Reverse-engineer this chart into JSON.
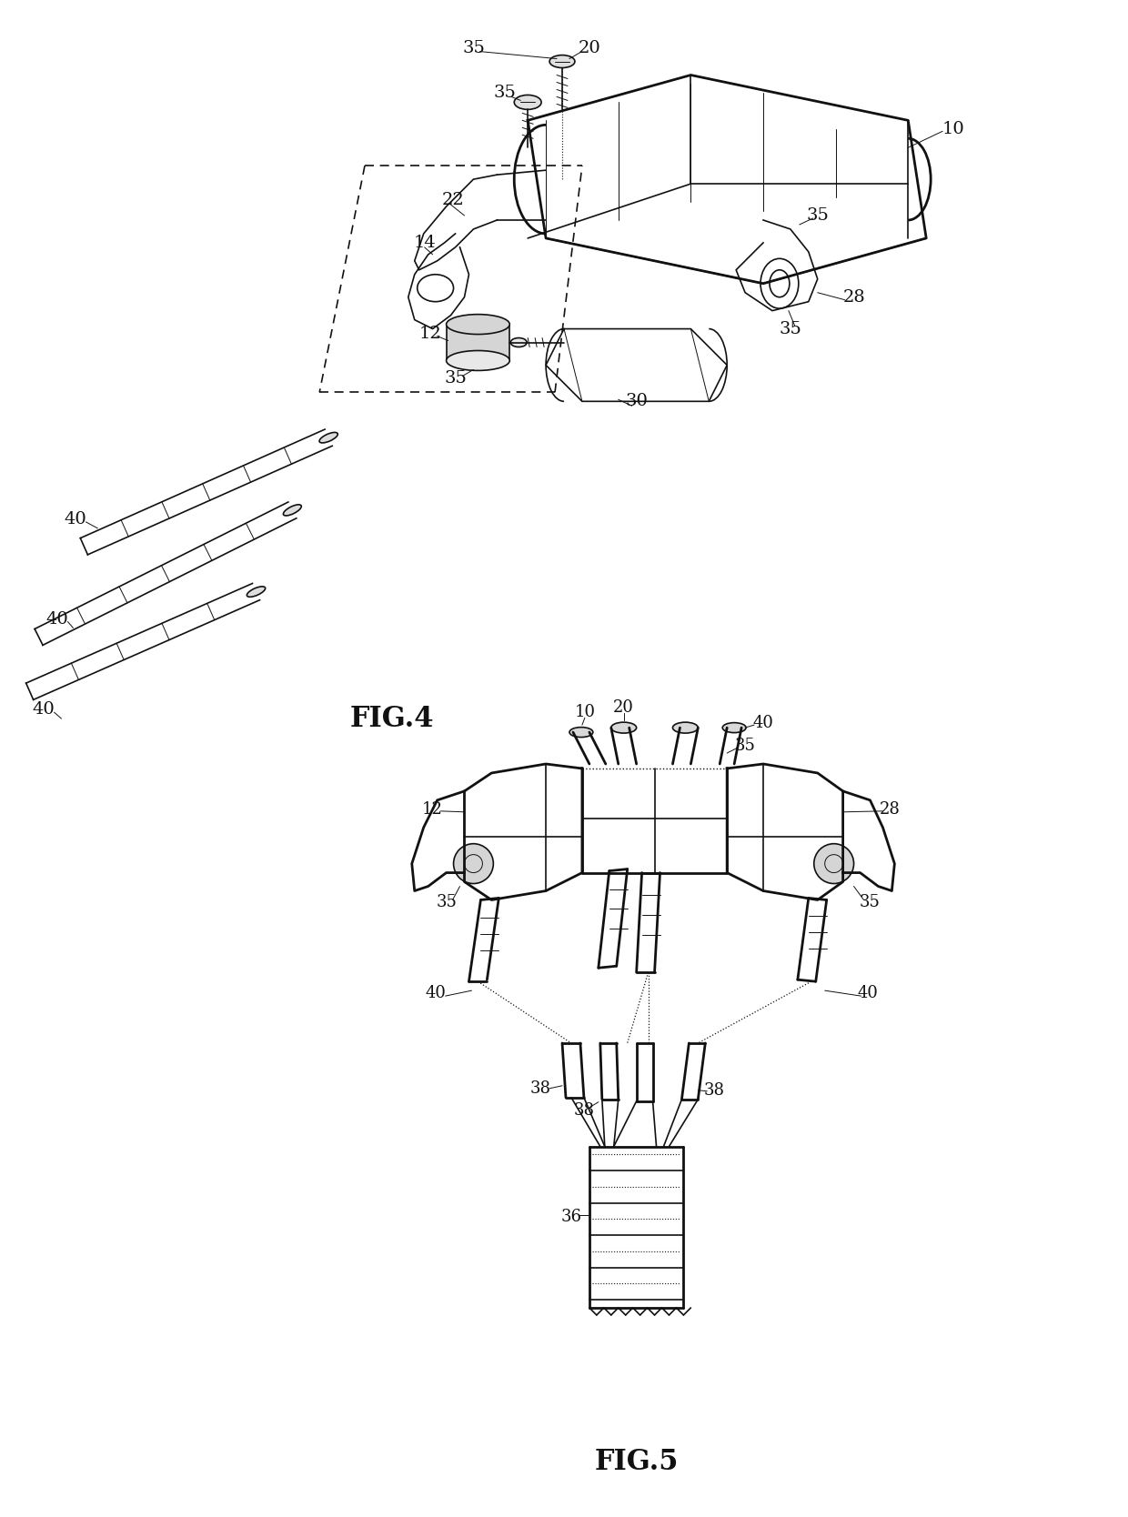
{
  "background_color": "#ffffff",
  "line_color": "#111111",
  "fig_width": 12.4,
  "fig_height": 16.68,
  "dpi": 100
}
